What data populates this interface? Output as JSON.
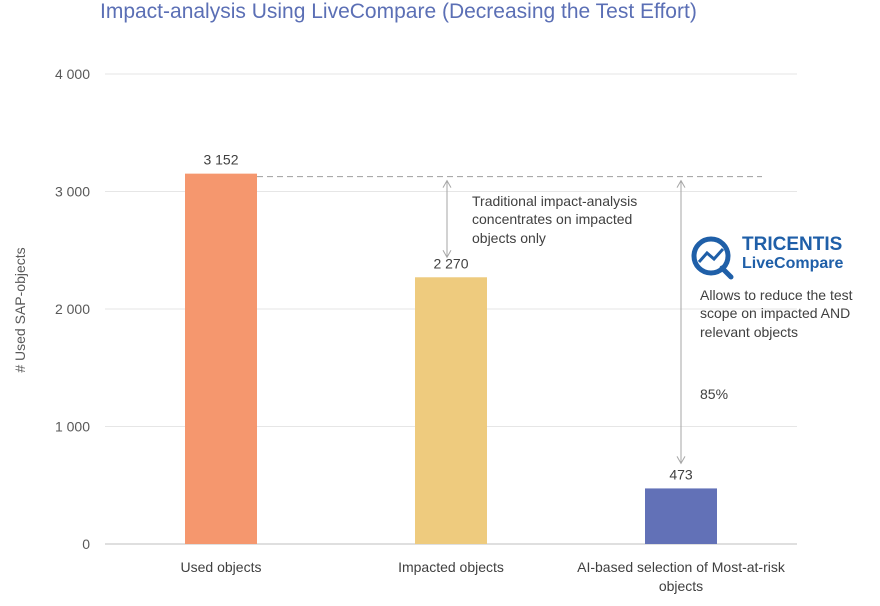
{
  "chart_data": {
    "type": "bar",
    "title": "Impact-analysis Using LiveCompare (Decreasing the Test Effort)",
    "ylabel": "# Used SAP-objects",
    "xlabel": "",
    "ylim": [
      0,
      4000
    ],
    "yticks": [
      0,
      1000,
      2000,
      3000,
      4000
    ],
    "ytick_labels": [
      "0",
      "1 000",
      "2 000",
      "3 000",
      "4 000"
    ],
    "categories": [
      "Used objects",
      "Impacted objects",
      "AI-based selection of Most-at-risk objects"
    ],
    "values": [
      3152,
      2270,
      473
    ],
    "value_labels": [
      "3 152",
      "2 270",
      "473"
    ],
    "bar_colors": [
      "#f5976e",
      "#eecb7e",
      "#6271b7"
    ],
    "grid": true,
    "annotations": {
      "traditional": [
        "Traditional impact-analysis",
        "concentrates on impacted",
        "objects only"
      ],
      "brand_name": "TRICENTIS",
      "brand_product": "LiveCompare",
      "allows": [
        "Allows to reduce the test",
        "scope on impacted AND",
        "relevant objects"
      ],
      "percent": "85%"
    }
  },
  "colors": {
    "title": "#5b6fb5",
    "grid": "#e6e6e6",
    "axis": "#bfbfbf",
    "brand": "#1f5fa8"
  }
}
